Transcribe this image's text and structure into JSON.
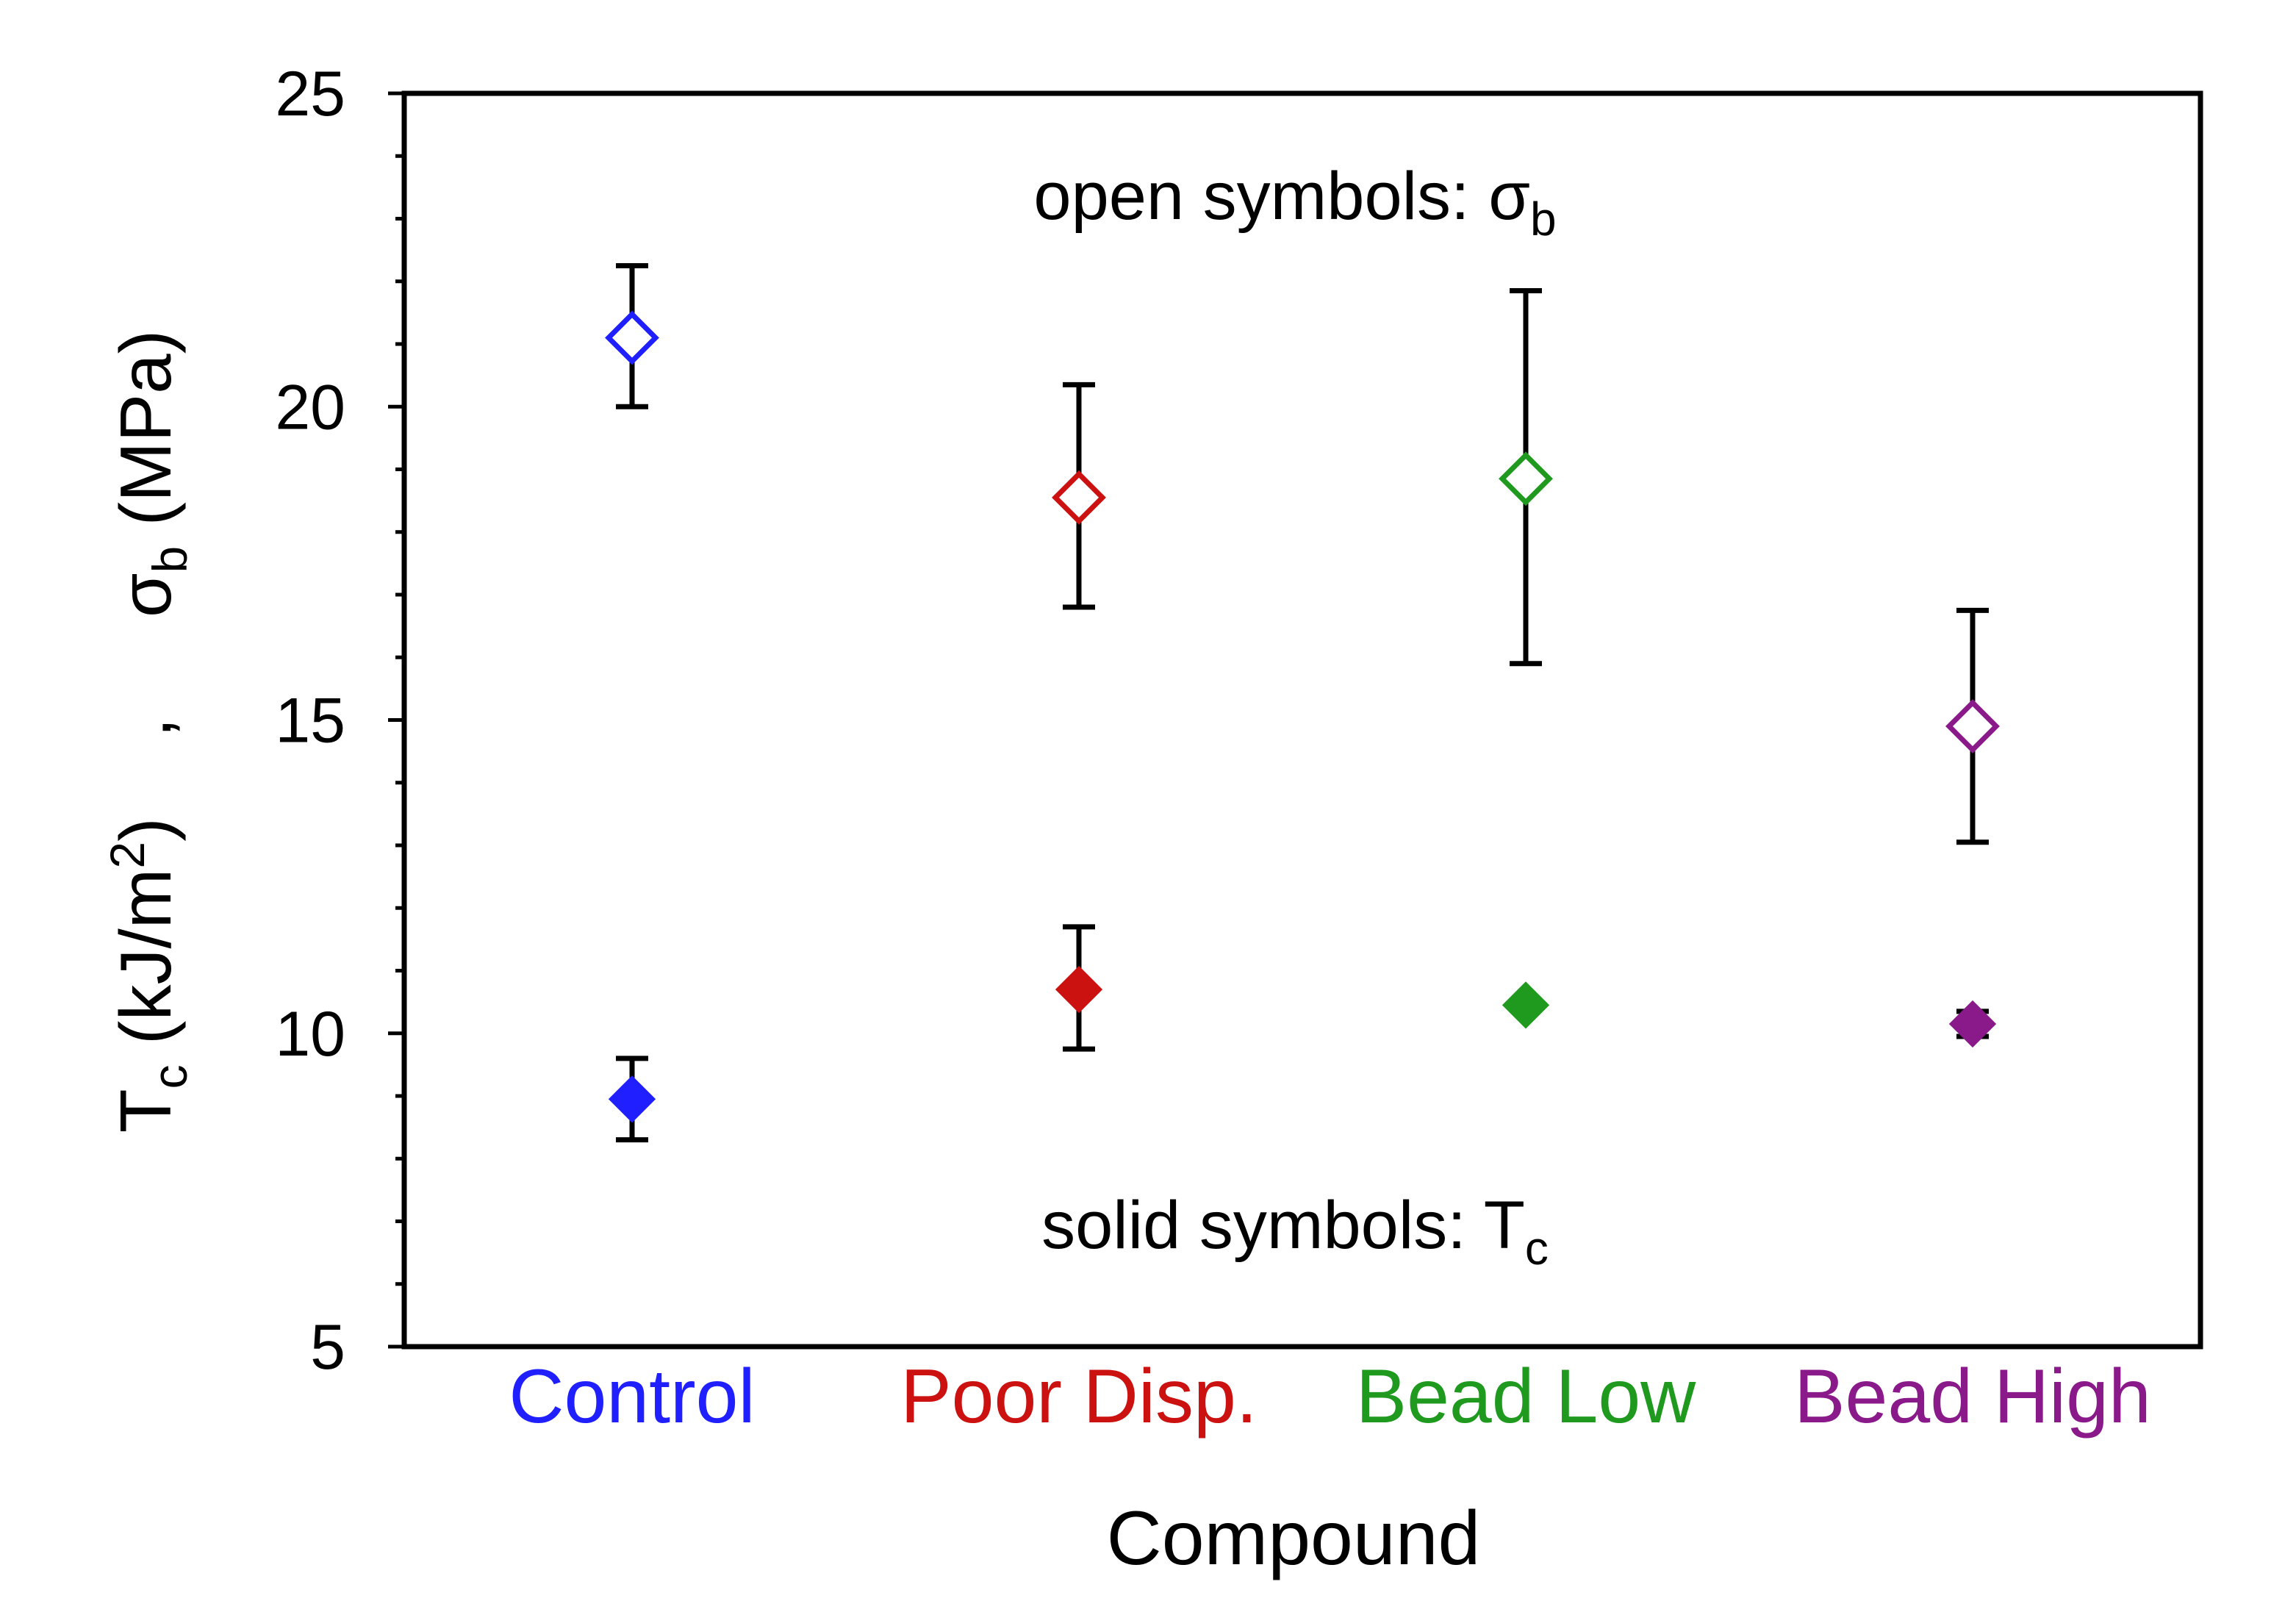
{
  "chart_data": {
    "type": "scatter",
    "xlabel": "Compound",
    "ylabel": {
      "tc_symbol": "T",
      "tc_sub": "c",
      "tc_unit_a": " (kJ/m",
      "tc_sup": "2",
      "tc_unit_b": ")",
      "separator": ",",
      "sigma_symbol": "σ",
      "sigma_sub": "b",
      "sigma_unit": " (MPa)"
    },
    "ylim": [
      5,
      25
    ],
    "yticks": [
      "5",
      "10",
      "15",
      "20",
      "25"
    ],
    "grid": false,
    "categories": [
      {
        "label": "Control",
        "color": "#1f1fff"
      },
      {
        "label": "Poor Disp.",
        "color": "#cc1111"
      },
      {
        "label": "Bead Low",
        "color": "#1f9a1f"
      },
      {
        "label": "Bead High",
        "color": "#8a1a8a"
      }
    ],
    "series": [
      {
        "key": "sigma_b",
        "marker": "open-diamond",
        "values": [
          21.1,
          18.55,
          18.85,
          14.9
        ],
        "err_low": [
          20.0,
          16.8,
          15.9,
          13.05
        ],
        "err_high": [
          22.25,
          20.35,
          21.85,
          16.75
        ]
      },
      {
        "key": "T_c",
        "marker": "solid-diamond",
        "values": [
          8.95,
          10.7,
          10.45,
          10.15
        ],
        "err_low": [
          8.3,
          9.75,
          null,
          9.95
        ],
        "err_high": [
          9.6,
          11.7,
          null,
          10.35
        ]
      }
    ],
    "annotations": {
      "open": {
        "text": "open symbols: ",
        "symbol": "σ",
        "sub": "b"
      },
      "solid": {
        "text": "solid symbols: ",
        "symbol": "T",
        "sub": "c"
      }
    }
  }
}
